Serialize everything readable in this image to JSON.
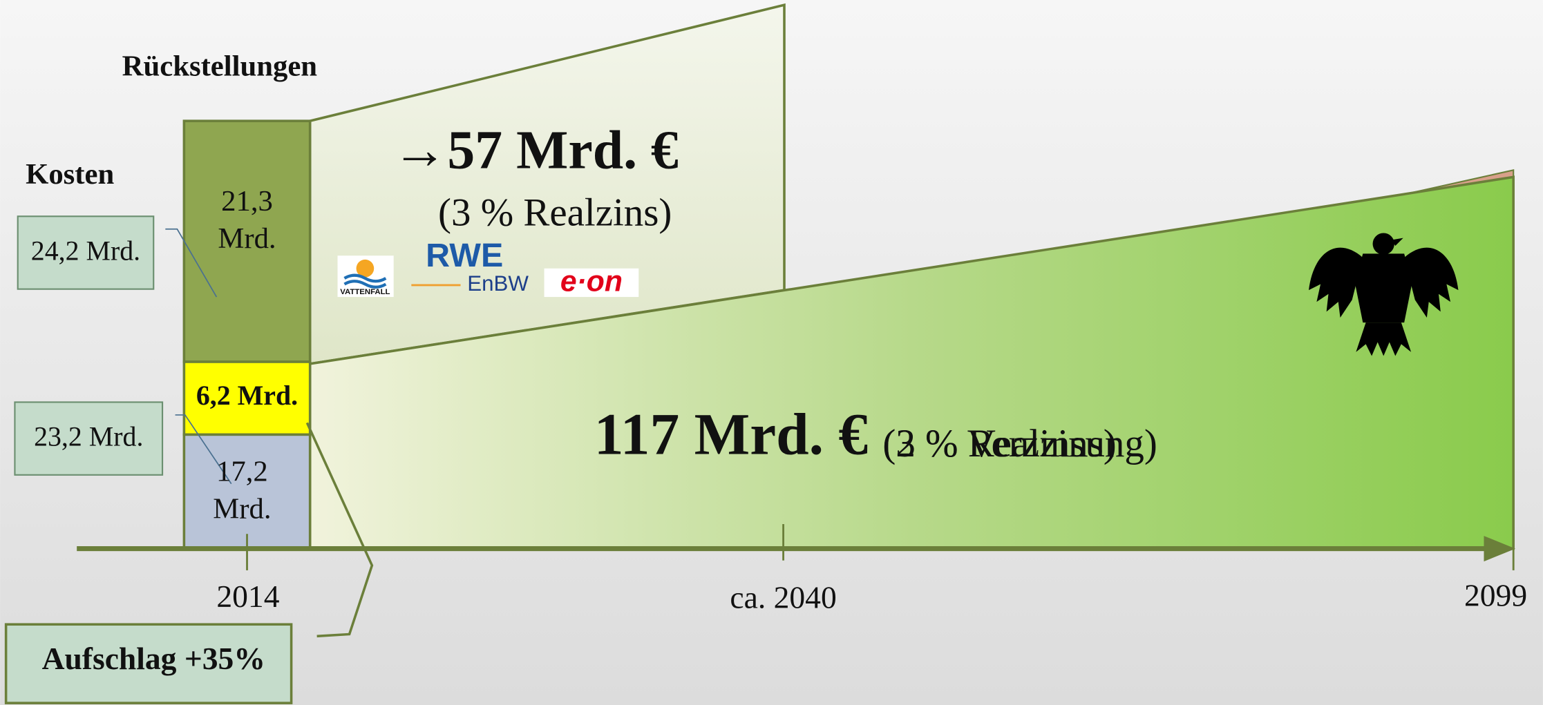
{
  "header": {
    "provisions": "Rückstellungen",
    "costs": "Kosten"
  },
  "boxes": {
    "costs_upper": "24,2 Mrd.",
    "costs_lower": "23,2 Mrd.",
    "surcharge": "Aufschlag +35%"
  },
  "bar": {
    "upper": [
      "21,3",
      "Mrd."
    ],
    "middle": "6,2 Mrd.",
    "lower": [
      "17,2",
      "Mrd."
    ]
  },
  "upper_fund": {
    "amount": "→57 Mrd. €",
    "note": "(3 % Realzins)"
  },
  "lower_fund": {
    "amount": "117 Mrd. €",
    "note_a": "(3 % Realzins)",
    "note_b": "(2 % Verzinsung)"
  },
  "logos": [
    "VATTENFALL",
    "RWE",
    "EnBW",
    "e·on"
  ],
  "timeline": [
    "2014",
    "ca. 2040",
    "2099"
  ]
}
